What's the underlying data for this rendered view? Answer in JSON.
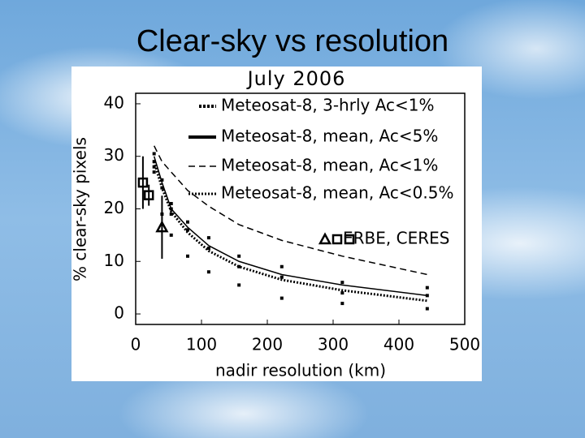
{
  "slide": {
    "title": "Clear-sky vs resolution"
  },
  "chart_data": {
    "type": "line",
    "title": "July 2006",
    "x_label": "nadir resolution (km)",
    "y_label": "% clear-sky pixels",
    "xlim": [
      0,
      500
    ],
    "ylim": [
      -2,
      42
    ],
    "xticks": [
      0,
      100,
      200,
      300,
      400,
      500
    ],
    "yticks": [
      0,
      10,
      20,
      30,
      40
    ],
    "grid": false,
    "legend": "upper right",
    "series": [
      {
        "name": "Meteosat-8, 3-hrly Ac<1%",
        "type": "scatter",
        "color": "#000000",
        "x": [
          28,
          28,
          28,
          28,
          40,
          40,
          40,
          54,
          54,
          54,
          54,
          79,
          79,
          79,
          111,
          111,
          111,
          157,
          157,
          157,
          222,
          222,
          222,
          314,
          314,
          314,
          443,
          443,
          443
        ],
        "values": [
          30.5,
          29,
          28,
          27,
          25.5,
          24,
          19,
          21,
          20,
          19,
          15,
          17.5,
          16,
          11,
          14.5,
          12.5,
          8,
          11,
          9,
          5.5,
          9,
          7,
          3,
          6,
          4,
          2,
          5,
          3.5,
          1
        ]
      },
      {
        "name": "Meteosat-8, mean, Ac<5%",
        "type": "line",
        "style": "solid",
        "color": "#000000",
        "x": [
          28,
          40,
          54,
          79,
          111,
          157,
          222,
          314,
          443
        ],
        "values": [
          30,
          25,
          20,
          16.5,
          13,
          10,
          7.5,
          5.5,
          3.5
        ]
      },
      {
        "name": "Meteosat-8, mean, Ac<1%",
        "type": "line",
        "style": "dashed",
        "color": "#000000",
        "x": [
          28,
          40,
          54,
          79,
          111,
          157,
          222,
          314,
          443
        ],
        "values": [
          32,
          29,
          27,
          23.5,
          20.5,
          17,
          14,
          11,
          7.5
        ]
      },
      {
        "name": "Meteosat-8, mean, Ac<0.5%",
        "type": "line",
        "style": "dotted",
        "color": "#000000",
        "x": [
          28,
          40,
          54,
          79,
          111,
          157,
          222,
          314,
          443
        ],
        "values": [
          29,
          24,
          19.5,
          15.5,
          12,
          9,
          6.5,
          4.5,
          2.5
        ]
      },
      {
        "name": "ERBE, CERES",
        "type": "scatter",
        "color": "#000000",
        "markers": [
          "triangle",
          "square",
          "square"
        ],
        "x": [
          40,
          11,
          20
        ],
        "values": [
          16.5,
          25,
          22.6
        ],
        "errors": [
          6,
          5,
          2
        ]
      }
    ]
  }
}
